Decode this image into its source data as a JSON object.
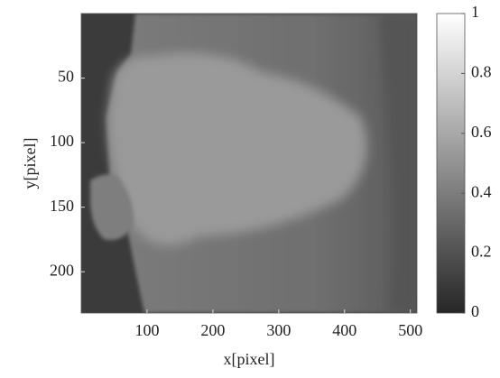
{
  "chart_data": {
    "type": "image",
    "x_label": "x[pixel]",
    "y_label": "y[pixel]",
    "xlim": [
      0,
      510
    ],
    "xticks": [
      100,
      200,
      300,
      400,
      500
    ],
    "ylim": [
      0,
      232
    ],
    "yticks": [
      50,
      100,
      150,
      200
    ],
    "y_reversed": true,
    "colormap": "gray",
    "colorbar": {
      "lim": [
        0,
        1
      ],
      "ticks": [
        0,
        0.2,
        0.4,
        0.6,
        0.8,
        1
      ]
    }
  }
}
